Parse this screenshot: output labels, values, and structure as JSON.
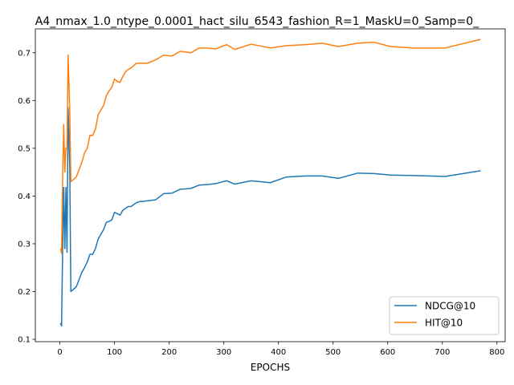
{
  "chart_data": {
    "type": "line",
    "title": "A4_nmax_1.0_ntype_0.0001_hact_silu_6543_fashion_R=1_MaskU=0_Samp=0_",
    "xlabel": "EPOCHS",
    "ylabel": "",
    "xlim": [
      -45,
      815
    ],
    "ylim": [
      0.095,
      0.75
    ],
    "xticks": [
      0,
      100,
      200,
      300,
      400,
      500,
      600,
      700,
      800
    ],
    "yticks": [
      0.1,
      0.2,
      0.3,
      0.4,
      0.5,
      0.6,
      0.7
    ],
    "grid": false,
    "legend": "lower-right",
    "series": [
      {
        "name": "NDCG@10",
        "color": "#1f77b4",
        "x": [
          1,
          3,
          5,
          7,
          9,
          11,
          13,
          15,
          18,
          20,
          25,
          30,
          35,
          40,
          45,
          50,
          55,
          60,
          65,
          70,
          75,
          80,
          85,
          90,
          95,
          100,
          105,
          110,
          115,
          120,
          125,
          130,
          140,
          145,
          160,
          175,
          190,
          205,
          220,
          240,
          255,
          270,
          285,
          305,
          320,
          350,
          385,
          415,
          450,
          480,
          510,
          545,
          575,
          605,
          645,
          705,
          770
        ],
        "y": [
          0.134,
          0.128,
          0.29,
          0.418,
          0.29,
          0.418,
          0.282,
          0.585,
          0.46,
          0.2,
          0.205,
          0.21,
          0.225,
          0.24,
          0.25,
          0.262,
          0.278,
          0.278,
          0.29,
          0.31,
          0.32,
          0.33,
          0.345,
          0.347,
          0.35,
          0.366,
          0.363,
          0.36,
          0.37,
          0.374,
          0.378,
          0.378,
          0.386,
          0.388,
          0.39,
          0.392,
          0.405,
          0.406,
          0.414,
          0.416,
          0.423,
          0.424,
          0.426,
          0.432,
          0.425,
          0.432,
          0.428,
          0.44,
          0.442,
          0.442,
          0.437,
          0.448,
          0.447,
          0.444,
          0.443,
          0.441,
          0.453
        ]
      },
      {
        "name": "HIT@10",
        "color": "#ff7f0e",
        "x": [
          1,
          3,
          5,
          7,
          9,
          11,
          13,
          15,
          18,
          20,
          25,
          30,
          35,
          40,
          45,
          50,
          55,
          60,
          65,
          70,
          75,
          80,
          85,
          90,
          95,
          100,
          105,
          110,
          115,
          120,
          125,
          130,
          140,
          145,
          160,
          175,
          190,
          205,
          220,
          240,
          255,
          270,
          285,
          305,
          320,
          350,
          385,
          415,
          450,
          480,
          510,
          545,
          575,
          605,
          645,
          705,
          770
        ],
        "y": [
          0.29,
          0.28,
          0.44,
          0.55,
          0.45,
          0.5,
          0.5,
          0.695,
          0.58,
          0.43,
          0.435,
          0.44,
          0.455,
          0.47,
          0.49,
          0.5,
          0.527,
          0.527,
          0.54,
          0.57,
          0.58,
          0.59,
          0.61,
          0.62,
          0.628,
          0.645,
          0.64,
          0.638,
          0.65,
          0.66,
          0.665,
          0.668,
          0.678,
          0.678,
          0.678,
          0.685,
          0.695,
          0.693,
          0.703,
          0.7,
          0.71,
          0.71,
          0.708,
          0.717,
          0.707,
          0.718,
          0.71,
          0.715,
          0.717,
          0.72,
          0.713,
          0.72,
          0.722,
          0.713,
          0.71,
          0.71,
          0.728
        ]
      }
    ]
  }
}
